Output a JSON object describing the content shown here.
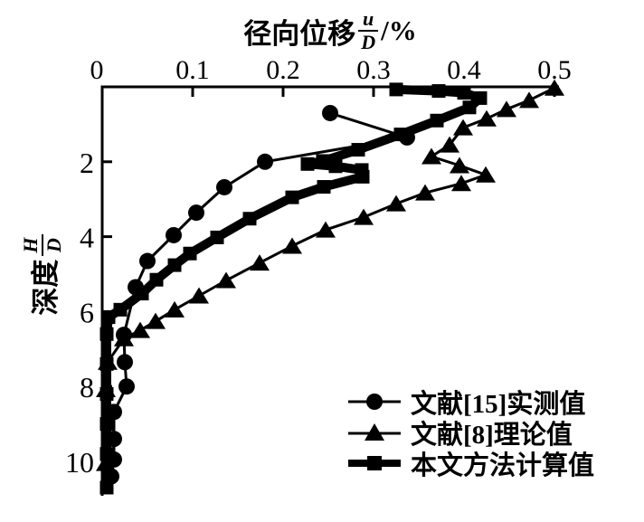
{
  "figure": {
    "background": "#ffffff",
    "stroke_color": "#000000"
  },
  "x_title": {
    "prefix": "径向位移",
    "frac_num": "u",
    "frac_den": "D",
    "suffix": "/%"
  },
  "y_title": {
    "prefix": "深度",
    "frac_num": "H",
    "frac_den": "D"
  },
  "legend": {
    "items": [
      {
        "label": "文献[15]实测值",
        "marker": "circle"
      },
      {
        "label": "文献[8]理论值",
        "marker": "triangle"
      },
      {
        "label": "本文方法计算值",
        "marker": "square"
      }
    ]
  },
  "chart_data": {
    "type": "line",
    "title": "径向位移 u/D /%",
    "xlabel": "径向位移 u/D /%",
    "ylabel": "深度 H/D",
    "orientation": "depth profile, y-axis points downward, x-axis on top",
    "grid": false,
    "legend_position": "inside lower right",
    "x_axis": {
      "range": [
        0,
        0.5
      ],
      "ticks": [
        {
          "v": 0.0,
          "label": "0"
        },
        {
          "v": 0.1,
          "label": "0.1"
        },
        {
          "v": 0.2,
          "label": "0.2"
        },
        {
          "v": 0.3,
          "label": "0.3"
        },
        {
          "v": 0.4,
          "label": "0.4"
        },
        {
          "v": 0.5,
          "label": "0.5"
        }
      ]
    },
    "y_axis": {
      "range": [
        0,
        10.8
      ],
      "ticks": [
        {
          "v": 2,
          "label": "2"
        },
        {
          "v": 4,
          "label": "4"
        },
        {
          "v": 6,
          "label": "6"
        },
        {
          "v": 8,
          "label": "8"
        },
        {
          "v": 10,
          "label": "10"
        }
      ]
    },
    "series": [
      {
        "name": "文献[15]实测值",
        "marker": "circle",
        "line_width": 3,
        "points": [
          [
            0.252,
            0.7
          ],
          [
            0.337,
            1.35
          ],
          [
            0.18,
            2.0
          ],
          [
            0.135,
            2.68
          ],
          [
            0.104,
            3.36
          ],
          [
            0.079,
            3.96
          ],
          [
            0.05,
            4.65
          ],
          [
            0.037,
            5.35
          ],
          [
            0.024,
            6.62
          ],
          [
            0.025,
            7.35
          ],
          [
            0.027,
            8.0
          ],
          [
            0.013,
            8.68
          ],
          [
            0.013,
            9.4
          ],
          [
            0.013,
            9.95
          ],
          [
            0.01,
            10.4
          ]
        ]
      },
      {
        "name": "文献[8]理论值",
        "marker": "triangle",
        "line_width": 3,
        "points": [
          [
            0.5,
            0.03
          ],
          [
            0.472,
            0.36
          ],
          [
            0.447,
            0.6
          ],
          [
            0.425,
            0.85
          ],
          [
            0.399,
            1.09
          ],
          [
            0.384,
            1.55
          ],
          [
            0.364,
            1.86
          ],
          [
            0.395,
            2.1
          ],
          [
            0.424,
            2.35
          ],
          [
            0.397,
            2.58
          ],
          [
            0.357,
            2.83
          ],
          [
            0.325,
            3.12
          ],
          [
            0.289,
            3.48
          ],
          [
            0.247,
            3.82
          ],
          [
            0.21,
            4.25
          ],
          [
            0.174,
            4.7
          ],
          [
            0.137,
            5.17
          ],
          [
            0.107,
            5.58
          ],
          [
            0.08,
            5.95
          ],
          [
            0.059,
            6.26
          ],
          [
            0.042,
            6.5
          ],
          [
            0.024,
            6.72
          ],
          [
            0.006,
            7.35
          ],
          [
            0.004,
            8.08
          ],
          [
            0.004,
            10.05
          ]
        ]
      },
      {
        "name": "本文方法计算值",
        "marker": "square",
        "line_width": 10,
        "points": [
          [
            0.325,
            0.07
          ],
          [
            0.372,
            0.11
          ],
          [
            0.4,
            0.16
          ],
          [
            0.418,
            0.3
          ],
          [
            0.406,
            0.55
          ],
          [
            0.37,
            0.9
          ],
          [
            0.33,
            1.27
          ],
          [
            0.283,
            1.68
          ],
          [
            0.244,
            1.98
          ],
          [
            0.227,
            2.06
          ],
          [
            0.258,
            2.12
          ],
          [
            0.287,
            2.22
          ],
          [
            0.288,
            2.4
          ],
          [
            0.245,
            2.67
          ],
          [
            0.21,
            2.95
          ],
          [
            0.163,
            3.52
          ],
          [
            0.127,
            4.02
          ],
          [
            0.097,
            4.45
          ],
          [
            0.08,
            4.76
          ],
          [
            0.06,
            5.15
          ],
          [
            0.044,
            5.52
          ],
          [
            0.02,
            5.95
          ],
          [
            0.007,
            6.15
          ],
          [
            0.005,
            6.6
          ],
          [
            0.005,
            7.4
          ],
          [
            0.005,
            8.2
          ],
          [
            0.005,
            9.0
          ],
          [
            0.005,
            9.8
          ],
          [
            0.005,
            10.7
          ]
        ]
      }
    ]
  }
}
